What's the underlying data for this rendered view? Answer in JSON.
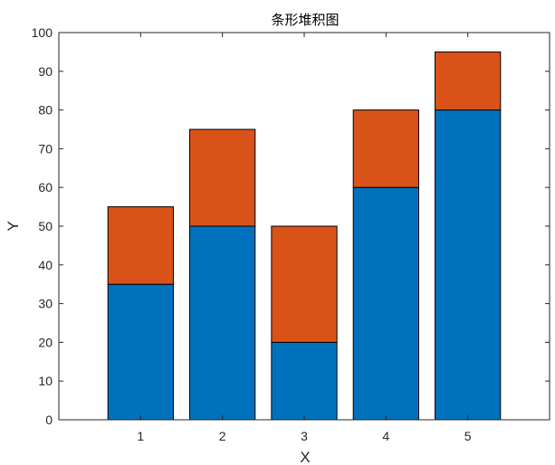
{
  "chart_data": {
    "type": "bar",
    "stacked": true,
    "title": "条形堆积图",
    "xlabel": "X",
    "ylabel": "Y",
    "categories": [
      "1",
      "2",
      "3",
      "4",
      "5"
    ],
    "series": [
      {
        "values": [
          35,
          50,
          20,
          60,
          80
        ],
        "color": "#0072BD"
      },
      {
        "values": [
          20,
          25,
          30,
          20,
          15
        ],
        "color": "#D95319"
      }
    ],
    "xlim": [
      0,
      6
    ],
    "ylim": [
      0,
      100
    ],
    "yticks": [
      "0",
      "10",
      "20",
      "30",
      "40",
      "50",
      "60",
      "70",
      "80",
      "90",
      "100"
    ],
    "grid": false,
    "legend": null
  }
}
